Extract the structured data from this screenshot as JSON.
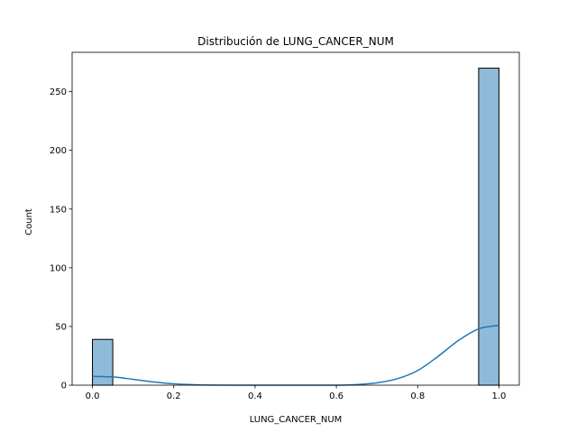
{
  "chart_data": {
    "type": "bar",
    "subtype": "histogram_with_kde",
    "title": "Distribución de LUNG_CANCER_NUM",
    "xlabel": "LUNG_CANCER_NUM",
    "ylabel": "Count",
    "xlim": [
      -0.05,
      1.05
    ],
    "ylim": [
      0,
      283.5
    ],
    "x_ticks": [
      0.0,
      0.2,
      0.4,
      0.6,
      0.8,
      1.0
    ],
    "x_tick_labels": [
      "0.0",
      "0.2",
      "0.4",
      "0.6",
      "0.8",
      "1.0"
    ],
    "y_ticks": [
      0,
      50,
      100,
      150,
      200,
      250
    ],
    "y_tick_labels": [
      "0",
      "50",
      "100",
      "150",
      "200",
      "250"
    ],
    "bins": [
      {
        "x0": 0.0,
        "x1": 0.05,
        "count": 39
      },
      {
        "x0": 0.95,
        "x1": 1.0,
        "count": 270
      }
    ],
    "kde": {
      "x": [
        0.0,
        0.05,
        0.1,
        0.15,
        0.2,
        0.25,
        0.3,
        0.35,
        0.4,
        0.45,
        0.5,
        0.55,
        0.6,
        0.65,
        0.7,
        0.75,
        0.8,
        0.85,
        0.9,
        0.95,
        1.0
      ],
      "y": [
        7.5,
        7.0,
        5.0,
        2.8,
        1.2,
        0.4,
        0.1,
        0.0,
        0.0,
        0.0,
        0.0,
        0.0,
        0.0,
        0.5,
        2.0,
        5.5,
        12.5,
        24.5,
        38.0,
        48.0,
        51.0
      ]
    },
    "grid": false,
    "colors": {
      "bar_fill": "#1f77b4",
      "bar_fill_opacity": 0.5,
      "bar_edge": "#000000",
      "kde_line": "#1f77b4"
    }
  }
}
